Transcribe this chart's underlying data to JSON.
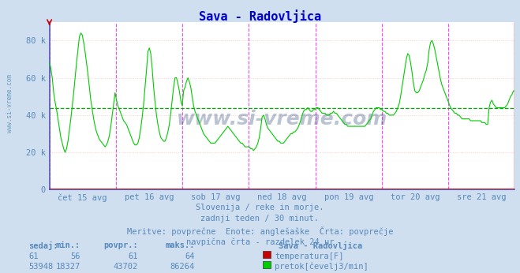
{
  "title": "Sava - Radovljica",
  "title_color": "#0000cc",
  "bg_color": "#d0dff0",
  "plot_bg_color": "#ffffff",
  "ytick_labels": [
    "0",
    "20 k",
    "40 k",
    "60 k",
    "80 k"
  ],
  "ytick_values": [
    0,
    20000,
    40000,
    60000,
    80000
  ],
  "ylim": [
    0,
    90000
  ],
  "xlim": [
    0,
    336
  ],
  "xticklabels": [
    "čet 15 avg",
    "pet 16 avg",
    "sob 17 avg",
    "ned 18 avg",
    "pon 19 avg",
    "tor 20 avg",
    "sre 21 avg"
  ],
  "xtick_positions": [
    24,
    72,
    120,
    168,
    216,
    264,
    312
  ],
  "vline_positions": [
    0,
    48,
    96,
    144,
    192,
    240,
    288,
    336
  ],
  "avg_line_value": 43702,
  "flow_color": "#00cc00",
  "temp_color": "#cc0000",
  "grid_color": "#ffcccc",
  "grid_dotted_color": "#ffcccc",
  "avg_line_color": "#00aa00",
  "vline_color": "#ff44ff",
  "axis_color": "#5555bb",
  "text_color": "#5588bb",
  "subtitle_lines": [
    "Slovenija / reke in morje.",
    "zadnji teden / 30 minut.",
    "Meritve: povprečne  Enote: anglešaške  Črta: povprečje",
    "navpična črta - razdelek 24 ur"
  ],
  "legend_title": "Sava - Radovljica",
  "stat_headers": [
    "sedaj:",
    "min.:",
    "povpr.:",
    "maks.:"
  ],
  "stat_temp": [
    61,
    56,
    61,
    64
  ],
  "stat_flow": [
    53948,
    18327,
    43702,
    86264
  ],
  "legend_temp_label": "temperatura[F]",
  "legend_flow_label": "pretok[čevelj3/min]",
  "watermark": "www.si-vreme.com",
  "watermark_color": "#1a3a6a",
  "sidebar_text": "www.si-vreme.com",
  "sidebar_color": "#6699bb",
  "flow_data": [
    69000,
    65000,
    60000,
    52000,
    47000,
    43000,
    38000,
    33000,
    28000,
    25000,
    22000,
    20000,
    22000,
    26000,
    32000,
    38000,
    45000,
    52000,
    60000,
    68000,
    75000,
    82000,
    84000,
    83000,
    79000,
    74000,
    68000,
    62000,
    55000,
    48000,
    43000,
    38000,
    34000,
    31000,
    29000,
    27000,
    26000,
    25000,
    24000,
    23000,
    24000,
    26000,
    29000,
    34000,
    40000,
    46000,
    52000,
    48000,
    45000,
    43000,
    41000,
    39000,
    37000,
    36000,
    35000,
    33000,
    31000,
    29000,
    27000,
    25000,
    24000,
    24000,
    25000,
    28000,
    33000,
    39000,
    46000,
    55000,
    64000,
    74000,
    76000,
    73000,
    65000,
    55000,
    47000,
    40000,
    35000,
    31000,
    28000,
    27000,
    26000,
    26000,
    28000,
    31000,
    35000,
    41000,
    48000,
    55000,
    60000,
    60000,
    57000,
    53000,
    48000,
    45000,
    53000,
    55000,
    58000,
    60000,
    58000,
    55000,
    50000,
    45000,
    42000,
    40000,
    38000,
    36000,
    34000,
    32000,
    30000,
    29000,
    28000,
    27000,
    26000,
    25000,
    25000,
    25000,
    25000,
    26000,
    27000,
    28000,
    29000,
    30000,
    31000,
    32000,
    33000,
    34000,
    33000,
    32000,
    31000,
    30000,
    29000,
    28000,
    27000,
    26000,
    25000,
    25000,
    24000,
    23000,
    23000,
    23000,
    23000,
    22000,
    22000,
    21000,
    22000,
    23000,
    25000,
    28000,
    33000,
    39000,
    40000,
    38000,
    35000,
    33000,
    32000,
    31000,
    30000,
    29000,
    28000,
    27000,
    26000,
    26000,
    25000,
    25000,
    25000,
    26000,
    27000,
    28000,
    29000,
    30000,
    30000,
    31000,
    31000,
    32000,
    33000,
    35000,
    37000,
    40000,
    42000,
    43000,
    43000,
    44000,
    43000,
    42000,
    42000,
    43000,
    43000,
    44000,
    44000,
    43000,
    42000,
    41000,
    41000,
    41000,
    40000,
    40000,
    40000,
    41000,
    41000,
    42000,
    41000,
    41000,
    40000,
    39000,
    38000,
    37000,
    36000,
    35000,
    35000,
    34000,
    34000,
    34000,
    34000,
    34000,
    34000,
    34000,
    34000,
    34000,
    34000,
    34000,
    34000,
    34000,
    35000,
    36000,
    37000,
    38000,
    40000,
    42000,
    43000,
    44000,
    44000,
    44000,
    43000,
    43000,
    42000,
    42000,
    41000,
    41000,
    40000,
    40000,
    40000,
    40000,
    41000,
    42000,
    44000,
    46000,
    50000,
    55000,
    60000,
    65000,
    70000,
    73000,
    72000,
    68000,
    63000,
    57000,
    53000,
    52000,
    52000,
    53000,
    55000,
    57000,
    59000,
    62000,
    64000,
    68000,
    75000,
    79000,
    80000,
    78000,
    75000,
    71000,
    67000,
    63000,
    59000,
    56000,
    54000,
    52000,
    50000,
    48000,
    46000,
    44000,
    43000,
    42000,
    41000,
    41000,
    40000,
    40000,
    39000,
    38000,
    38000,
    38000,
    38000,
    38000,
    38000,
    37000,
    37000,
    37000,
    37000,
    37000,
    37000,
    37000,
    37000,
    36000,
    36000,
    36000,
    35000,
    35000,
    44000,
    47000,
    48000,
    46000,
    45000,
    44000,
    44000,
    44000,
    44000,
    44000,
    44000,
    44000,
    45000,
    46000,
    48000,
    50000,
    51000,
    53000,
    53000
  ]
}
